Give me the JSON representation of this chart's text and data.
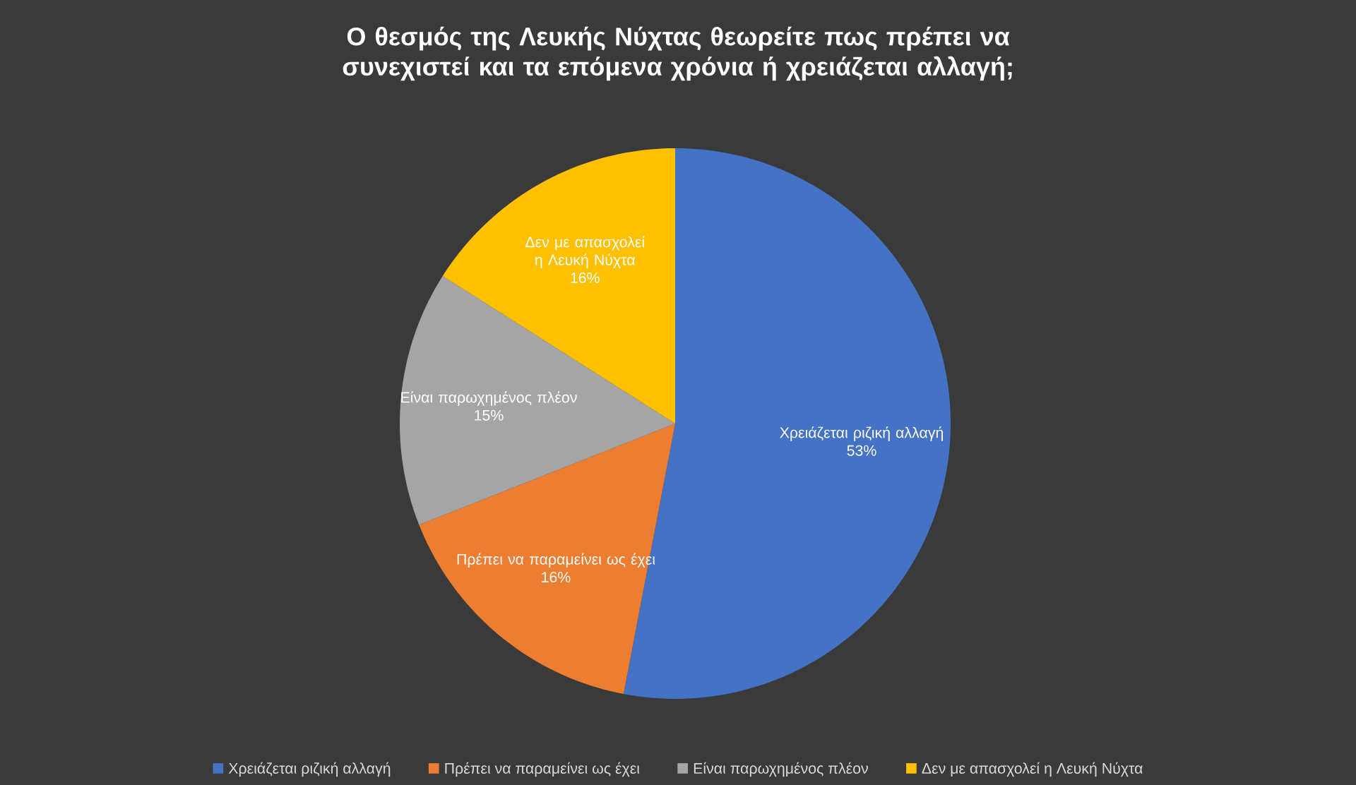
{
  "chart_data": {
    "type": "pie",
    "title": "Ο θεσμός της Λευκής Νύχτας θεωρείτε πως πρέπει να συνεχιστεί και τα επόμενα χρόνια ή χρειάζεται αλλαγή;",
    "categories": [
      "Χρειάζεται ριζική αλλαγή",
      "Πρέπει να παραμείνει ως έχει",
      "Είναι παρωχημένος πλέον",
      "Δεν με απασχολεί η Λευκή Νύχτα"
    ],
    "values": [
      53,
      16,
      15,
      16
    ],
    "colors": [
      "#4472c4",
      "#ed7d31",
      "#a5a5a5",
      "#ffc000"
    ],
    "value_labels": [
      "53%",
      "16%",
      "15%",
      "16%"
    ],
    "legend": "bottom"
  }
}
